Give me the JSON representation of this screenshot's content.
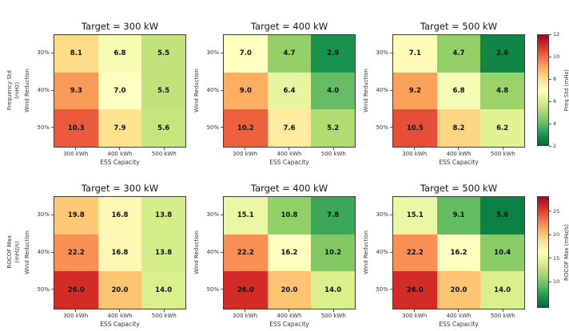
{
  "figure_title": "",
  "chart_data": {
    "type": "heatmap",
    "layout": "2 rows x 3 columns of annotated heatmaps, one shared colorbar per row on the right",
    "categories_x": [
      "300 kWh",
      "400 kWh",
      "500 kWh"
    ],
    "categories_y": [
      "30%",
      "40%",
      "50%"
    ],
    "xlabel": "ESS Capacity",
    "ylabel": "Wind Reduction",
    "colormap": "RdYlGn_r",
    "colors": {
      "rdylgn_red_to_green": [
        "#a50026",
        "#d73027",
        "#f46d43",
        "#fdae61",
        "#fee08b",
        "#ffffbf",
        "#d9ef8b",
        "#a6d96a",
        "#66bd63",
        "#1a9850",
        "#006837"
      ],
      "background": "#ffffff",
      "annotation_text": "#101010"
    },
    "rows": [
      {
        "metric_label": "Frequency Std\n(mHz)",
        "colorbar": {
          "label": "Freq Std (mHz)",
          "vmin": 2,
          "vmax": 12,
          "ticks": [
            12,
            10,
            8,
            6,
            4,
            2
          ]
        },
        "panels": [
          {
            "title": "Target = 300 kW",
            "values": [
              [
                8.1,
                6.8,
                5.5
              ],
              [
                9.3,
                7.0,
                5.5
              ],
              [
                10.3,
                7.9,
                5.6
              ]
            ]
          },
          {
            "title": "Target = 400 kW",
            "values": [
              [
                7.0,
                4.7,
                2.9
              ],
              [
                9.0,
                6.4,
                4.0
              ],
              [
                10.2,
                7.6,
                5.2
              ]
            ]
          },
          {
            "title": "Target = 500 kW",
            "values": [
              [
                7.1,
                4.7,
                2.6
              ],
              [
                9.2,
                6.8,
                4.8
              ],
              [
                10.5,
                8.2,
                6.2
              ]
            ]
          }
        ]
      },
      {
        "metric_label": "ROCOF Max\n(mHz/s)",
        "colorbar": {
          "label": "ROCOF Max (mHz/s)",
          "vmin": 4.4,
          "vmax": 28.2,
          "ticks": [
            25,
            20,
            15,
            10
          ]
        },
        "panels": [
          {
            "title": "Target = 300 kW",
            "values": [
              [
                19.8,
                16.8,
                13.8
              ],
              [
                22.2,
                16.8,
                13.8
              ],
              [
                26.0,
                20.0,
                14.0
              ]
            ]
          },
          {
            "title": "Target = 400 kW",
            "values": [
              [
                15.1,
                10.8,
                7.8
              ],
              [
                22.2,
                16.2,
                10.2
              ],
              [
                26.0,
                20.0,
                14.0
              ]
            ]
          },
          {
            "title": "Target = 500 kW",
            "values": [
              [
                15.1,
                9.1,
                5.6
              ],
              [
                22.2,
                16.2,
                10.4
              ],
              [
                26.0,
                20.0,
                14.0
              ]
            ]
          }
        ]
      }
    ]
  }
}
